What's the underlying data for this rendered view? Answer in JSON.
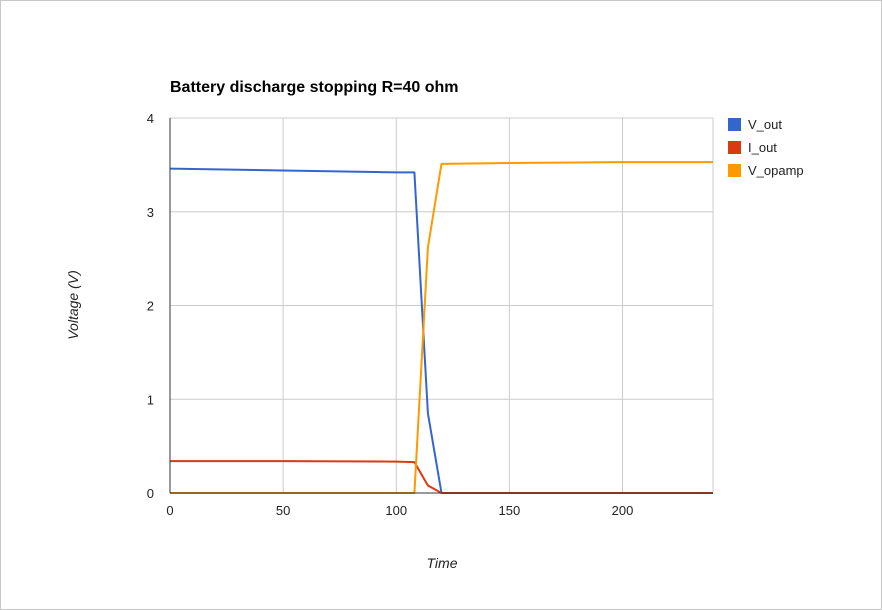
{
  "chart_data": {
    "type": "line",
    "title": "Battery discharge stopping R=40 ohm",
    "xlabel": "Time",
    "ylabel": "Voltage (V)",
    "xlim": [
      0,
      240
    ],
    "ylim": [
      0,
      4
    ],
    "x_ticks": [
      0,
      50,
      100,
      150,
      200
    ],
    "y_ticks": [
      0,
      1,
      2,
      3,
      4
    ],
    "grid": true,
    "legend_position": "right",
    "series": [
      {
        "name": "V_out",
        "color": "#3366cc",
        "points": [
          [
            0,
            3.46
          ],
          [
            50,
            3.44
          ],
          [
            100,
            3.42
          ],
          [
            108,
            3.42
          ],
          [
            114,
            0.85
          ],
          [
            120,
            0.0
          ],
          [
            150,
            0.0
          ],
          [
            200,
            0.0
          ],
          [
            240,
            0.0
          ]
        ]
      },
      {
        "name": "I_out",
        "color": "#dc3912",
        "points": [
          [
            0,
            0.34
          ],
          [
            50,
            0.34
          ],
          [
            100,
            0.335
          ],
          [
            108,
            0.33
          ],
          [
            114,
            0.08
          ],
          [
            120,
            0.0
          ],
          [
            150,
            0.0
          ],
          [
            200,
            0.0
          ],
          [
            240,
            0.0
          ]
        ]
      },
      {
        "name": "V_opamp",
        "color": "#ff9900",
        "points": [
          [
            0,
            0.0
          ],
          [
            50,
            0.0
          ],
          [
            100,
            0.0
          ],
          [
            108,
            0.0
          ],
          [
            114,
            2.62
          ],
          [
            120,
            3.51
          ],
          [
            150,
            3.52
          ],
          [
            200,
            3.53
          ],
          [
            240,
            3.53
          ]
        ]
      }
    ]
  }
}
